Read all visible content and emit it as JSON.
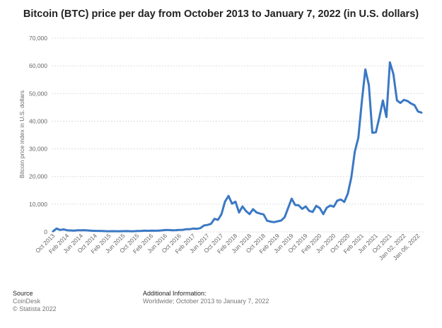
{
  "chart_data": {
    "type": "line",
    "title": "Bitcoin (BTC) price per day from October 2013 to January 7, 2022 (in U.S. dollars)",
    "xlabel": "",
    "ylabel": "Bitcoin price index in U.S. dollars",
    "ylim": [
      0,
      70000
    ],
    "y_ticks": [
      "0",
      "10,000",
      "20,000",
      "30,000",
      "40,000",
      "50,000",
      "60,000",
      "70,000"
    ],
    "y_tick_values": [
      0,
      10000,
      20000,
      30000,
      40000,
      50000,
      60000,
      70000
    ],
    "x_tick_labels": [
      "Oct 2013",
      "Feb 2014",
      "Jun 2014",
      "Oct 2014",
      "Feb 2015",
      "Jun 2015",
      "Oct 2015",
      "Feb 2016",
      "Jun 2016",
      "Oct 2016",
      "Feb 2017",
      "Jun 2017",
      "Oct 2017",
      "Feb 2018",
      "Jun 2018",
      "Oct 2018",
      "Feb 2019",
      "Jun 2019",
      "Oct 2019",
      "Feb 2020",
      "Jun 2020",
      "Oct 2020",
      "Feb 2021",
      "Jun 2021",
      "Oct 2021",
      "Jan 02, 2022",
      "Jan 06, 2022"
    ],
    "grid": true,
    "line_color": "#3b78c4",
    "series": [
      {
        "x": [
          "Oct 2013",
          "Nov 2013",
          "Dec 2013",
          "Jan 2014",
          "Feb 2014",
          "Mar 2014",
          "Apr 2014",
          "May 2014",
          "Jun 2014",
          "Jul 2014",
          "Aug 2014",
          "Sep 2014",
          "Oct 2014",
          "Nov 2014",
          "Dec 2014",
          "Jan 2015",
          "Feb 2015",
          "Mar 2015",
          "Apr 2015",
          "May 2015",
          "Jun 2015",
          "Jul 2015",
          "Aug 2015",
          "Sep 2015",
          "Oct 2015",
          "Nov 2015",
          "Dec 2015",
          "Jan 2016",
          "Feb 2016",
          "Mar 2016",
          "Apr 2016",
          "May 2016",
          "Jun 2016",
          "Jul 2016",
          "Aug 2016",
          "Sep 2016",
          "Oct 2016",
          "Nov 2016",
          "Dec 2016",
          "Jan 2017",
          "Feb 2017",
          "Mar 2017",
          "Apr 2017",
          "May 2017",
          "Jun 2017",
          "Jul 2017",
          "Aug 2017",
          "Sep 2017",
          "Oct 2017",
          "Nov 2017",
          "Dec 2017",
          "Jan 2018",
          "Feb 2018",
          "Mar 2018",
          "Apr 2018",
          "May 2018",
          "Jun 2018",
          "Jul 2018",
          "Aug 2018",
          "Sep 2018",
          "Oct 2018",
          "Nov 2018",
          "Dec 2018",
          "Jan 2019",
          "Feb 2019",
          "Mar 2019",
          "Apr 2019",
          "May 2019",
          "Jun 2019",
          "Jul 2019",
          "Aug 2019",
          "Sep 2019",
          "Oct 2019",
          "Nov 2019",
          "Dec 2019",
          "Jan 2020",
          "Feb 2020",
          "Mar 2020",
          "Apr 2020",
          "May 2020",
          "Jun 2020",
          "Jul 2020",
          "Aug 2020",
          "Sep 2020",
          "Oct 2020",
          "Nov 2020",
          "Dec 2020",
          "Jan 2021",
          "Feb 2021",
          "Mar 2021",
          "Apr 2021",
          "May 2021",
          "Jun 2021",
          "Jul 2021",
          "Aug 2021",
          "Sep 2021",
          "Oct 2021",
          "Nov 2021",
          "Dec 2021",
          "Jan 01, 2022",
          "Jan 02, 2022",
          "Jan 03, 2022",
          "Jan 04, 2022",
          "Jan 05, 2022",
          "Jan 06, 2022",
          "Jan 07, 2022"
        ],
        "values": [
          200,
          1200,
          700,
          900,
          600,
          500,
          450,
          600,
          600,
          620,
          500,
          400,
          350,
          370,
          320,
          250,
          240,
          250,
          230,
          240,
          250,
          280,
          230,
          240,
          310,
          330,
          430,
          380,
          430,
          420,
          450,
          530,
          670,
          660,
          580,
          610,
          700,
          740,
          960,
          970,
          1190,
          1100,
          1350,
          2300,
          2500,
          2880,
          4700,
          4350,
          6400,
          10900,
          13000,
          10200,
          10900,
          7000,
          9200,
          7500,
          6400,
          8200,
          7000,
          6600,
          6300,
          4000,
          3700,
          3500,
          3800,
          4100,
          5300,
          8600,
          12000,
          9700,
          9600,
          8300,
          9200,
          7600,
          7200,
          9400,
          8600,
          6400,
          8700,
          9500,
          9100,
          11300,
          11700,
          10800,
          13800,
          19700,
          29000,
          34000,
          47000,
          58700,
          53000,
          35800,
          36000,
          41500,
          47500,
          41500,
          61300,
          57000,
          47500,
          46600,
          47700,
          47300,
          46400,
          45800,
          43500,
          43100
        ]
      }
    ]
  },
  "footer": {
    "source_label": "Source",
    "source_name": "CoinDesk",
    "copyright": "© Statista 2022",
    "additional_label": "Additional Information:",
    "additional_text": "Worldwide; October 2013 to January 7, 2022"
  }
}
